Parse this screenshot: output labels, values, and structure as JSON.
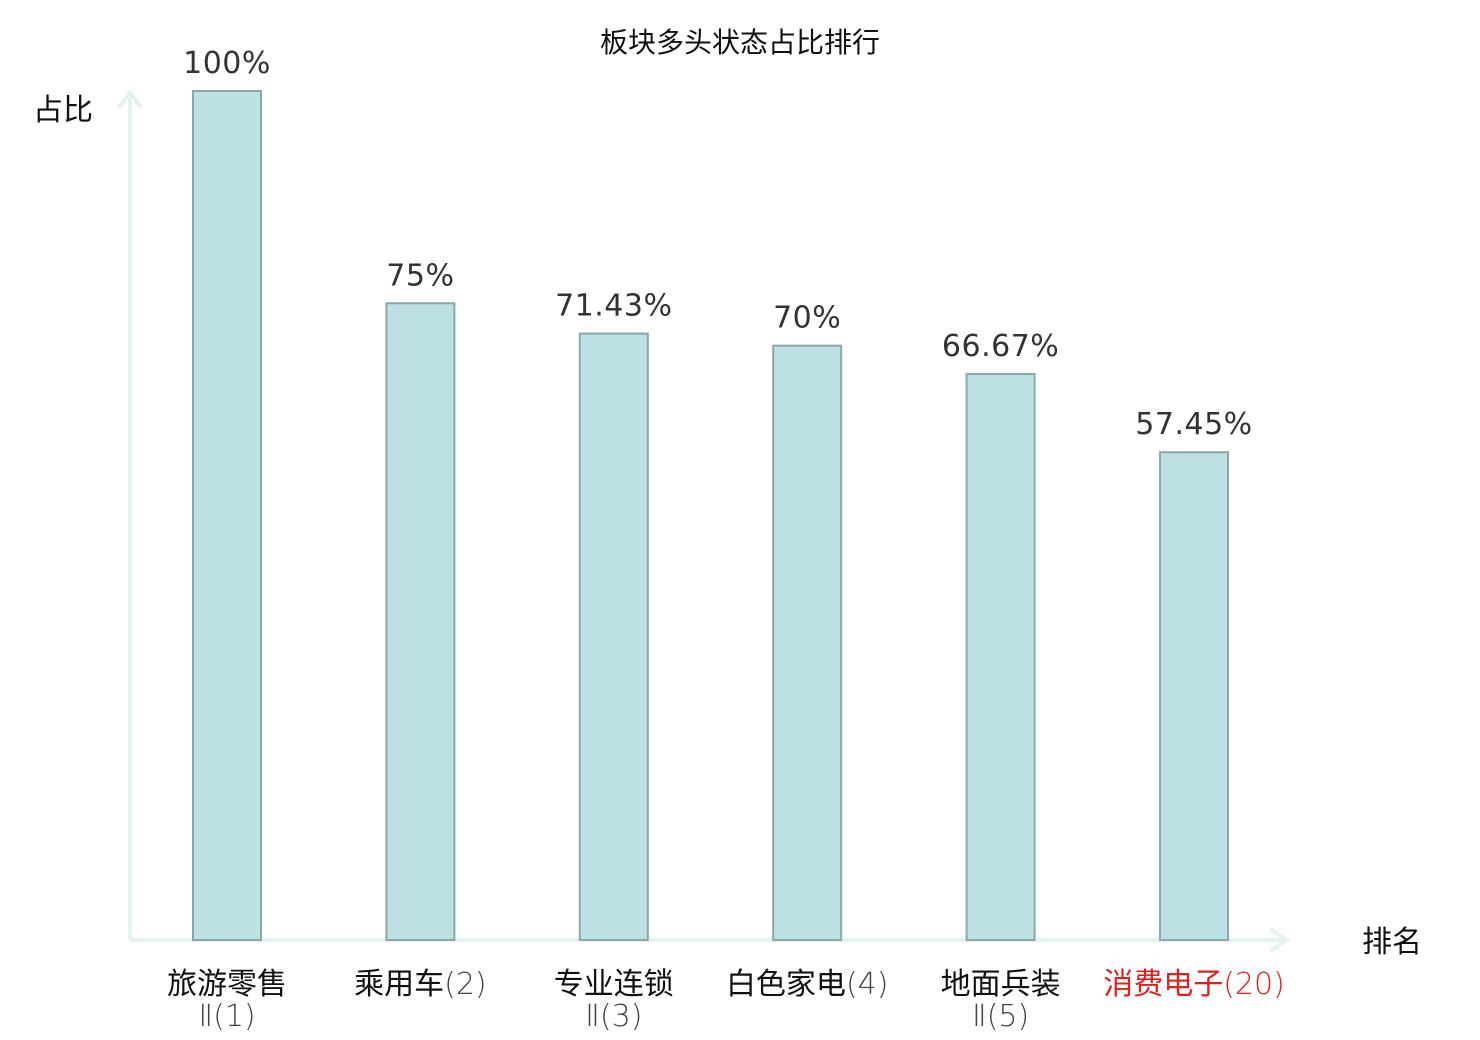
{
  "chart_data": {
    "type": "bar",
    "title": "板块多头状态占比排行",
    "ylabel": "占比",
    "xlabel": "排名",
    "ylim": [
      0,
      100
    ],
    "grid": false,
    "categories": [
      {
        "name": "旅游零售",
        "rank": "Ⅱ(1)"
      },
      {
        "name": "乘用车",
        "rank": "(2)"
      },
      {
        "name": "专业连锁",
        "rank": "Ⅱ(3)"
      },
      {
        "name": "白色家电",
        "rank": "(4)"
      },
      {
        "name": "地面兵装",
        "rank": "Ⅱ(5)"
      },
      {
        "name": "消费电子",
        "rank": "(20)"
      }
    ],
    "values": [
      100,
      75,
      71.43,
      70,
      66.67,
      57.45
    ],
    "value_labels": [
      "100%",
      "75%",
      "71.43%",
      "70%",
      "66.67%",
      "57.45%"
    ],
    "highlight_index": 5,
    "colors": {
      "bar_fill": "#bde0e3",
      "bar_stroke": "#8aa8ab",
      "axis": "#e2f3f1",
      "highlight": "#e0201c"
    }
  }
}
